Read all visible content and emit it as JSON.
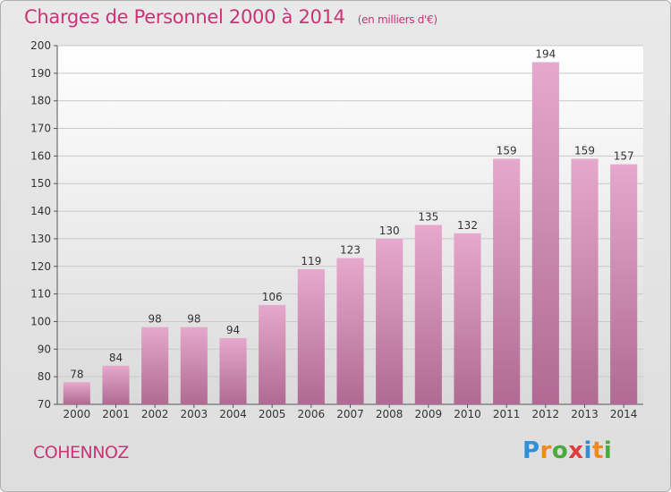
{
  "header": {
    "title": "Charges de Personnel 2000 à 2014",
    "unit": "(en milliers d'€)"
  },
  "footer": {
    "commune": "COHENNOZ",
    "brand": {
      "letters": [
        "P",
        "r",
        "o",
        "x",
        "i",
        "t",
        "i"
      ],
      "colors": [
        "#2f8fd8",
        "#f08a1c",
        "#4aab3a",
        "#e23b3b",
        "#2f8fd8",
        "#f08a1c",
        "#4aab3a"
      ]
    }
  },
  "colors": {
    "title": "#cc3377",
    "bar_light": "#e6a8cc",
    "bar_dark": "#b06a93",
    "grid": "#c8c8c8",
    "axis": "#555555"
  },
  "chart_data": {
    "type": "bar",
    "title": "Charges de Personnel 2000 à 2014",
    "subtitle": "(en milliers d'€)",
    "categories": [
      "2000",
      "2001",
      "2002",
      "2003",
      "2004",
      "2005",
      "2006",
      "2007",
      "2008",
      "2009",
      "2010",
      "2011",
      "2012",
      "2013",
      "2014"
    ],
    "values": [
      78,
      84,
      98,
      98,
      94,
      106,
      119,
      123,
      130,
      135,
      132,
      159,
      194,
      159,
      157
    ],
    "ylim": [
      70,
      200
    ],
    "yticks": [
      70,
      80,
      90,
      100,
      110,
      120,
      130,
      140,
      150,
      160,
      170,
      180,
      190,
      200
    ],
    "grid": true,
    "data_labels": true
  }
}
